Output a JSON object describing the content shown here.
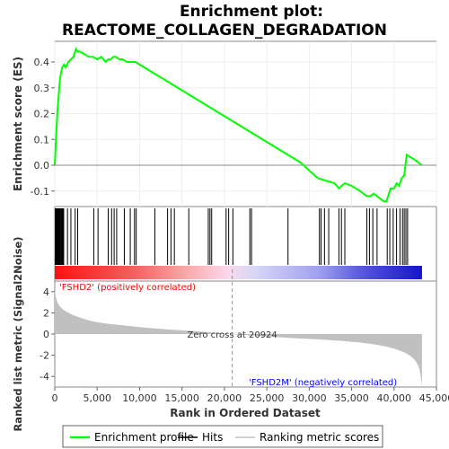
{
  "chart_data": {
    "type": "line",
    "title_line1": "Enrichment plot:",
    "title_line2": "REACTOME_COLLAGEN_DEGRADATION",
    "xlabel": "Rank in Ordered Dataset",
    "ylabel_top": "Enrichment score (ES)",
    "ylabel_bottom": "Ranked list metric (Signal2Noise)",
    "xlim": [
      0,
      45000
    ],
    "x_ticks": [
      0,
      5000,
      10000,
      15000,
      20000,
      25000,
      30000,
      35000,
      40000,
      45000
    ],
    "x_tick_labels": [
      "0",
      "5,000",
      "10,000",
      "15,000",
      "20,000",
      "25,000",
      "30,000",
      "35,000",
      "40,000",
      "45,000"
    ],
    "es_ylim": [
      -0.16,
      0.48
    ],
    "es_ticks": [
      -0.1,
      0.0,
      0.1,
      0.2,
      0.3,
      0.4
    ],
    "es_tick_labels": [
      "-0.1",
      "0.0",
      "0.1",
      "0.2",
      "0.3",
      "0.4"
    ],
    "metric_ylim": [
      -5,
      5
    ],
    "metric_ticks": [
      -4,
      -2,
      0,
      2,
      4
    ],
    "metric_tick_labels": [
      "-4",
      "-2",
      "0",
      "2",
      "4"
    ],
    "n_genes": 43300,
    "zero_cross_rank": 20924,
    "zero_cross_label": "Zero cross at 20924",
    "pos_label": "'FSHD2' (positively correlated)",
    "neg_label": "'FSHD2M' (negatively correlated)",
    "series": [
      {
        "name": "Enrichment profile",
        "color": "#00ff00",
        "x": [
          0,
          100,
          200,
          300,
          450,
          600,
          750,
          900,
          1100,
          1300,
          1600,
          1900,
          2200,
          2500,
          2700,
          3000,
          3500,
          4000,
          4500,
          5000,
          5500,
          6000,
          6300,
          6600,
          6900,
          7200,
          7600,
          8000,
          8500,
          9000,
          9500,
          10000,
          11000,
          12000,
          13000,
          14000,
          15000,
          16000,
          17000,
          18000,
          19000,
          20000,
          21000,
          22000,
          23000,
          24000,
          25000,
          26000,
          27000,
          28000,
          29000,
          30000,
          31000,
          31500,
          32000,
          32500,
          33000,
          33500,
          33800,
          34200,
          35000,
          36000,
          36800,
          37200,
          37600,
          38000,
          38400,
          38800,
          39100,
          39300,
          39600,
          40000,
          40300,
          40600,
          40900,
          41200,
          41500,
          42000,
          42500,
          43300
        ],
        "y": [
          0.0,
          0.07,
          0.14,
          0.2,
          0.27,
          0.33,
          0.36,
          0.38,
          0.39,
          0.38,
          0.4,
          0.41,
          0.42,
          0.45,
          0.44,
          0.44,
          0.43,
          0.42,
          0.42,
          0.41,
          0.42,
          0.4,
          0.41,
          0.41,
          0.42,
          0.42,
          0.41,
          0.41,
          0.4,
          0.4,
          0.4,
          0.39,
          0.37,
          0.35,
          0.33,
          0.31,
          0.29,
          0.27,
          0.25,
          0.23,
          0.21,
          0.19,
          0.17,
          0.15,
          0.13,
          0.11,
          0.09,
          0.07,
          0.05,
          0.03,
          0.01,
          -0.02,
          -0.05,
          -0.055,
          -0.06,
          -0.065,
          -0.07,
          -0.09,
          -0.08,
          -0.07,
          -0.08,
          -0.1,
          -0.12,
          -0.12,
          -0.11,
          -0.12,
          -0.13,
          -0.14,
          -0.14,
          -0.12,
          -0.09,
          -0.09,
          -0.07,
          -0.08,
          -0.05,
          -0.04,
          0.04,
          0.03,
          0.02,
          0.0
        ]
      },
      {
        "name": "Hits",
        "color": "#000000",
        "x": [
          60,
          130,
          200,
          260,
          330,
          400,
          470,
          540,
          620,
          700,
          780,
          860,
          950,
          1050,
          1500,
          1900,
          2400,
          2700,
          4600,
          5100,
          6300,
          6700,
          7000,
          7300,
          8200,
          8900,
          9400,
          9600,
          11800,
          13300,
          13700,
          14100,
          15800,
          18100,
          18300,
          18500,
          20200,
          20500,
          21000,
          23000,
          23200,
          27500,
          31200,
          31400,
          31800,
          32300,
          33500,
          33800,
          34200,
          36800,
          37100,
          37500,
          38000,
          39200,
          39500,
          39900,
          40300,
          40700,
          41000,
          41200,
          41400,
          41600
        ]
      },
      {
        "name": "Ranking metric scores",
        "color": "#c0c0c0",
        "x": [
          0,
          100,
          300,
          600,
          1000,
          1500,
          2000,
          3000,
          4000,
          5000,
          6000,
          8000,
          10000,
          12000,
          14000,
          16000,
          18000,
          20000,
          20924,
          22000,
          24000,
          26000,
          28000,
          30000,
          32000,
          34000,
          35000,
          36000,
          37000,
          38000,
          39000,
          40000,
          41000,
          41500,
          42000,
          42500,
          42800,
          43000,
          43150,
          43300
        ],
        "y": [
          4.3,
          3.6,
          3.0,
          2.6,
          2.3,
          2.05,
          1.85,
          1.55,
          1.3,
          1.12,
          1.0,
          0.82,
          0.66,
          0.52,
          0.4,
          0.3,
          0.18,
          0.06,
          0.0,
          -0.08,
          -0.18,
          -0.28,
          -0.38,
          -0.46,
          -0.55,
          -0.66,
          -0.73,
          -0.8,
          -0.9,
          -1.02,
          -1.17,
          -1.38,
          -1.65,
          -1.85,
          -2.1,
          -2.5,
          -2.9,
          -3.3,
          -4.0,
          -4.9
        ]
      }
    ],
    "legend": {
      "placement": "bottom",
      "items": [
        "Enrichment profile",
        "Hits",
        "Ranking metric scores"
      ]
    },
    "colors": {
      "es_line": "#00ff00",
      "hit_line": "#000000",
      "metric_fill": "#c0c0c0",
      "pos_label": "#ff0000",
      "neg_label": "#0000ff",
      "zero_line": "#888888"
    }
  }
}
